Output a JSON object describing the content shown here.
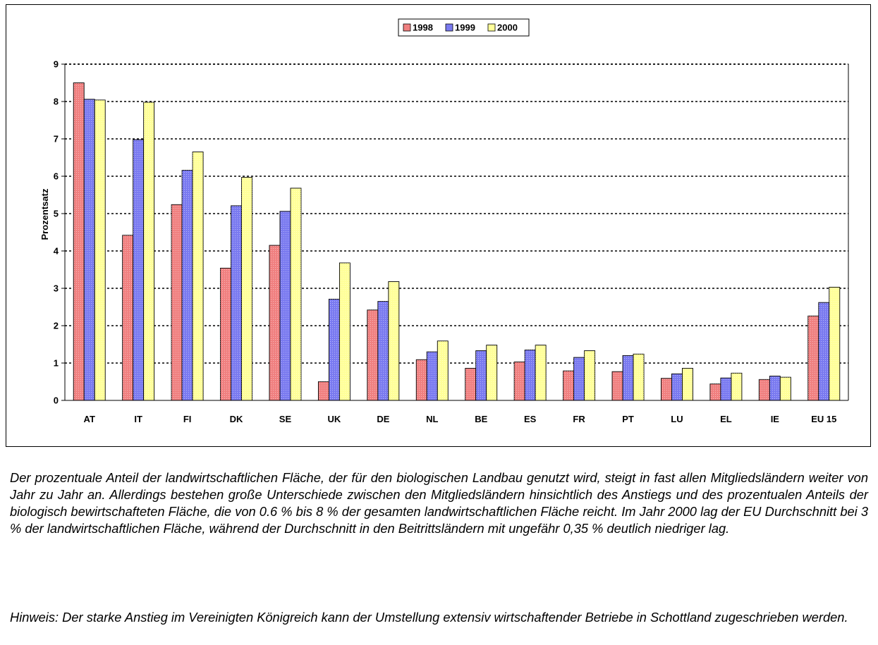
{
  "chart_data": {
    "type": "bar",
    "ylabel": "Prozentsatz",
    "ylim": [
      0,
      9
    ],
    "yticks": [
      "0",
      "1",
      "2",
      "3",
      "4",
      "5",
      "6",
      "7",
      "8",
      "9"
    ],
    "categories": [
      "AT",
      "IT",
      "FI",
      "DK",
      "SE",
      "UK",
      "DE",
      "NL",
      "BE",
      "ES",
      "FR",
      "PT",
      "LU",
      "EL",
      "IE",
      "EU 15"
    ],
    "grid": "horizontal-dotted",
    "legend_position": "top-center",
    "series": [
      {
        "name": "1998",
        "color": "#f08080",
        "values": [
          8.5,
          4.42,
          5.24,
          3.54,
          4.15,
          0.5,
          2.42,
          1.09,
          0.86,
          1.03,
          0.79,
          0.77,
          0.59,
          0.44,
          0.56,
          2.26
        ]
      },
      {
        "name": "1999",
        "color": "#7a7af0",
        "values": [
          8.06,
          6.98,
          6.16,
          5.21,
          5.06,
          2.71,
          2.65,
          1.3,
          1.33,
          1.35,
          1.15,
          1.2,
          0.71,
          0.6,
          0.65,
          2.62
        ]
      },
      {
        "name": "2000",
        "color": "#ffff99",
        "values": [
          8.04,
          7.98,
          6.65,
          5.97,
          5.68,
          3.68,
          3.18,
          1.59,
          1.48,
          1.48,
          1.33,
          1.24,
          0.86,
          0.73,
          0.62,
          3.03
        ]
      }
    ]
  },
  "caption": {
    "main": "Der prozentuale Anteil der landwirtschaftlichen Fläche, der für den biologischen Landbau genutzt wird, steigt in fast allen Mitgliedsländern weiter von Jahr zu Jahr an. Allerdings bestehen große Unterschiede zwischen den Mitgliedsländern hinsichtlich des Anstiegs und des prozentualen Anteils der biologisch bewirtschafteten Fläche, die von 0.6 % bis 8 % der gesamten landwirtschaftlichen Fläche reicht. Im Jahr 2000 lag der EU Durchschnitt bei 3 % der landwirtschaftlichen Fläche, während der Durchschnitt in den Beitrittsländern mit ungefähr 0,35 % deutlich niedriger lag.",
    "note": "Hinweis: Der starke Anstieg im Vereinigten Königreich kann der Umstellung extensiv wirtschaftender Betriebe in Schottland zugeschrieben werden."
  }
}
